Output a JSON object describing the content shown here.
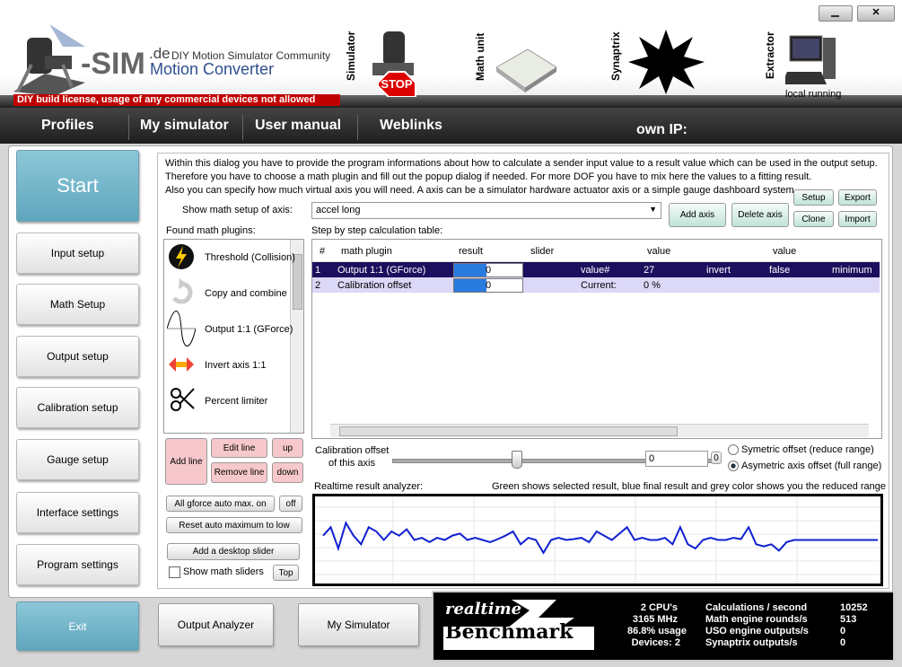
{
  "header": {
    "logo": "-SIM",
    "logo_suffix": ".de",
    "tagline": "DIY Motion Simulator Community",
    "product": "Motion Converter",
    "license": "DIY build license, usage of any commercial devices not allowed",
    "modules": [
      "Simulator",
      "Math unit",
      "Synaptrix",
      "Extractor"
    ],
    "extractor_status": "local running"
  },
  "menu": {
    "items": [
      "Profiles",
      "My simulator",
      "User manual",
      "Weblinks"
    ],
    "own_ip": "own IP:"
  },
  "sidebar": {
    "start": "Start",
    "items": [
      "Input setup",
      "Math Setup",
      "Output setup",
      "Calibration setup",
      "Gauge setup",
      "Interface settings",
      "Program settings"
    ],
    "exit": "Exit"
  },
  "intro": [
    "Within this dialog you have to provide the program informations about how to calculate a sender input value to a result value which can be used in the output setup.",
    "Therefore you have to choose a math plugin and fill out the popup dialog if needed. For more DOF you have to mix here the values to a fitting result.",
    "Also you can specify how much virtual axis you will need. A axis can be a simulator hardware actuator axis or a simple gauge dashboard system."
  ],
  "axis": {
    "label": "Show math setup of axis:",
    "value": "accel long",
    "add": "Add axis",
    "delete": "Delete axis",
    "setup": "Setup",
    "export": "Export",
    "clone": "Clone",
    "import": "Import"
  },
  "plugins": {
    "label": "Found math plugins:",
    "items": [
      "Threshold (Collision)",
      "Copy and combine",
      "Output 1:1 (GForce)",
      "Invert axis 1:1",
      "Percent limiter"
    ]
  },
  "table": {
    "label": "Step by step calculation table:",
    "columns": [
      "#",
      "math plugin",
      "result",
      "slider",
      "value",
      "value"
    ],
    "rows": [
      [
        "1",
        "Output 1:1 (GForce)",
        "0",
        "value#",
        "27",
        "invert",
        "false",
        "minimum"
      ],
      [
        "2",
        "Calibration offset",
        "0",
        "Current:",
        "0 %"
      ]
    ]
  },
  "line_buttons": {
    "add": "Add line",
    "edit": "Edit line",
    "up": "up",
    "remove": "Remove line",
    "down": "down",
    "gforce": "All gforce auto max. on",
    "off": "off",
    "reset": "Reset auto maximum to low",
    "slider": "Add a desktop slider",
    "show_sliders": "Show math sliders",
    "top": "Top"
  },
  "calibration": {
    "label1": "Calibration offset",
    "label2": "of this axis",
    "value": "0",
    "small": "0",
    "symmetric": "Symetric offset (reduce range)",
    "asymmetric": "Asymetric axis offset (full range)"
  },
  "analyzer": {
    "title": "Realtime result analyzer:",
    "legend": "Green shows selected result, blue final result and grey color shows you the reduced range",
    "ylim": [
      -1,
      1
    ],
    "values": [
      0.1,
      0.3,
      -0.2,
      0.4,
      0.1,
      -0.1,
      0.3,
      0.2,
      0.0,
      0.2,
      0.1,
      0.25,
      0.0,
      0.05,
      -0.05,
      0.05,
      0.0,
      0.1,
      0.15,
      0.0,
      0.05,
      0.0,
      -0.05,
      0.02,
      0.1,
      0.2,
      -0.1,
      0.05,
      0.0,
      -0.3,
      0.0,
      0.05,
      0.0,
      0.02,
      0.05,
      -0.05,
      0.2,
      0.1,
      0.0,
      0.15,
      0.3,
      0.0,
      0.05,
      0.0,
      0.0,
      0.05,
      -0.1,
      0.3,
      -0.1,
      -0.2,
      0.0,
      0.05,
      0.0,
      0.0,
      0.05,
      0.02,
      0.3,
      -0.1,
      -0.15,
      -0.1,
      -0.25,
      -0.05,
      0,
      0,
      0,
      0,
      0,
      0,
      0,
      0,
      0,
      0,
      0,
      0
    ]
  },
  "bottom": {
    "output_analyzer": "Output Analyzer",
    "my_simulator": "My Simulator"
  },
  "benchmark": {
    "word1": "realtime",
    "word2": "Benchmark",
    "system": [
      "2 CPU's",
      "3165 MHz",
      "86.8% usage",
      "Devices: 2"
    ],
    "stats": [
      [
        "Calculations / second",
        10252
      ],
      [
        "Math engine rounds/s",
        513
      ],
      [
        "USO engine outputs/s",
        0
      ],
      [
        "Synaptrix outputs/s",
        0
      ]
    ]
  }
}
